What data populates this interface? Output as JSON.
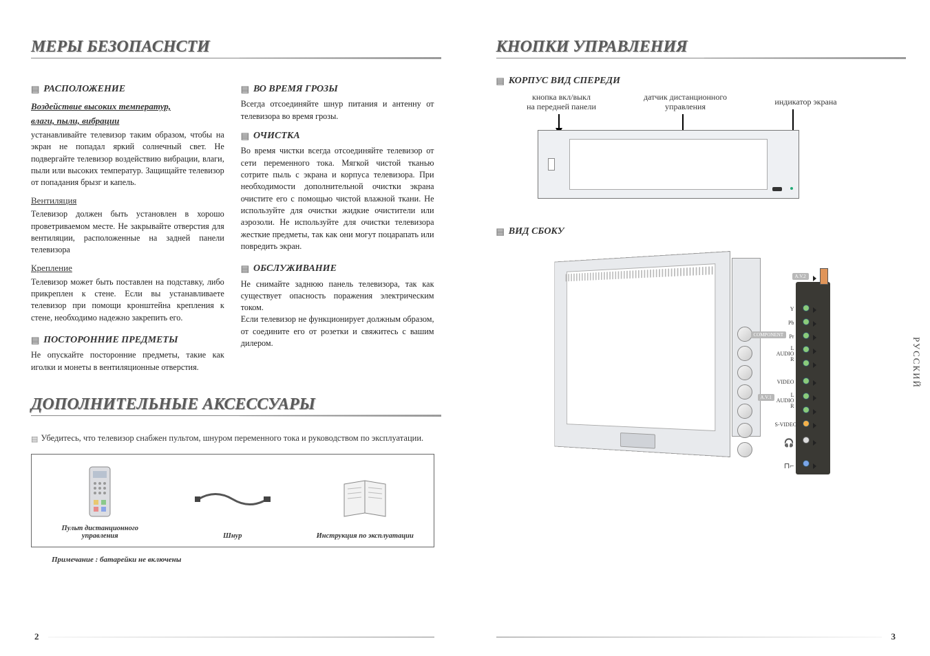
{
  "left": {
    "title": "МЕРЫ БЕЗОПАСНСТИ",
    "pageNumber": "2",
    "colA": {
      "h1": "РАСПОЛОЖЕНИЕ",
      "sub1a": "Воздействие высоких температур,",
      "sub1b": "влаги, пыли, вибрации",
      "p1": "устанавливайте телевизор таким образом, чтобы на экран не попадал яркий солнечный свет. Не подвергайте телевизор воздействию вибрации, влаги, пыли или высоких температур. Защищайте телевизор от попадания брызг и капель.",
      "sub2": "Вентиляция",
      "p2": "Телевизор должен быть установлен в хорошо проветриваемом месте. Не закрывайте отверстия для вентиляции, расположенные на задней панели телевизора",
      "sub3": "Крепление",
      "p3": "Телевизор может быть поставлен на подставку, либо прикреплен к стене. Если вы устанавливаете телевизор при помощи кронштейна крепления к стене, необходимо надежно закрепить его.",
      "h2": "ПОСТОРОННИЕ ПРЕДМЕТЫ",
      "p4": "Не опускайте посторонние предметы, такие как иголки и монеты в вентиляционные отверстия."
    },
    "colB": {
      "h1": "ВО ВРЕМЯ ГРОЗЫ",
      "p1": "Всегда отсоединяйте шнур питания и антенну от телевизора во время грозы.",
      "h2": "ОЧИСТКА",
      "p2": "Во время чистки всегда отсоединяйте телевизор от сети переменного тока. Мягкой чистой тканью сотрите пыль с экрана и корпуса телевизора. При необходимости дополнительной очистки экрана очистите его с помощью чистой влажной ткани. Не используйте для очистки жидкие очистители или аэрозоли. Не используйте для очистки телевизора жесткие предметы, так как они могут поцарапать или повредить экран.",
      "h3": "ОБСЛУЖИВАНИЕ",
      "p3": "Не снимайте заднюю панель телевизора, так как существует опасность поражения электрическим током.",
      "p4": "Если телевизор не функционирует должным образом, от соедините его от розетки и свяжитесь с вашим дилером."
    },
    "acc": {
      "title": "ДОПОЛНИТЕЛЬНЫЕ АКСЕССУАРЫ",
      "lead": "Убедитесь, что телевизор снабжен пультом, шнуром переменного тока и руководством по эксплуатации.",
      "item1": "Пульт дистанционного управления",
      "item2": "Шнур",
      "item3": "Инструкция по эксплуатации",
      "note": "Примечание : батарейки не включены"
    }
  },
  "right": {
    "title": "КНОПКИ УПРАВЛЕНИЯ",
    "pageNumber": "3",
    "sectionFront": "КОРПУС ВИД СПЕРЕДИ",
    "sectionSide": "ВИД СБОКУ",
    "labels": {
      "power": "кнопка вкл/выкл\nна передней панели",
      "ir": "датчик дистанционного\nуправления",
      "indicator": "индикатор экрана"
    },
    "sideTab": "РУССКИЙ",
    "portLabels": {
      "av2": "A.V.2",
      "y": "Y",
      "pb": "Pb",
      "comp": "COMPONENT",
      "pr": "Pr",
      "audioL": "L\nAUDIO\nR",
      "video": "VIDEO",
      "av1": "A.V.1",
      "svideo": "S-VIDEO",
      "hp": "🎧",
      "ant": "⊓⌐"
    }
  },
  "style": {
    "bg": "#ffffff",
    "titleColor": "#5a5a5a",
    "ruleColor": "#888888",
    "bodyColor": "#222222",
    "portGreen": "#8acb7a",
    "portOrange": "#f3b04a",
    "portBlue": "#7aa5e8",
    "panelDark": "#3a3934"
  }
}
